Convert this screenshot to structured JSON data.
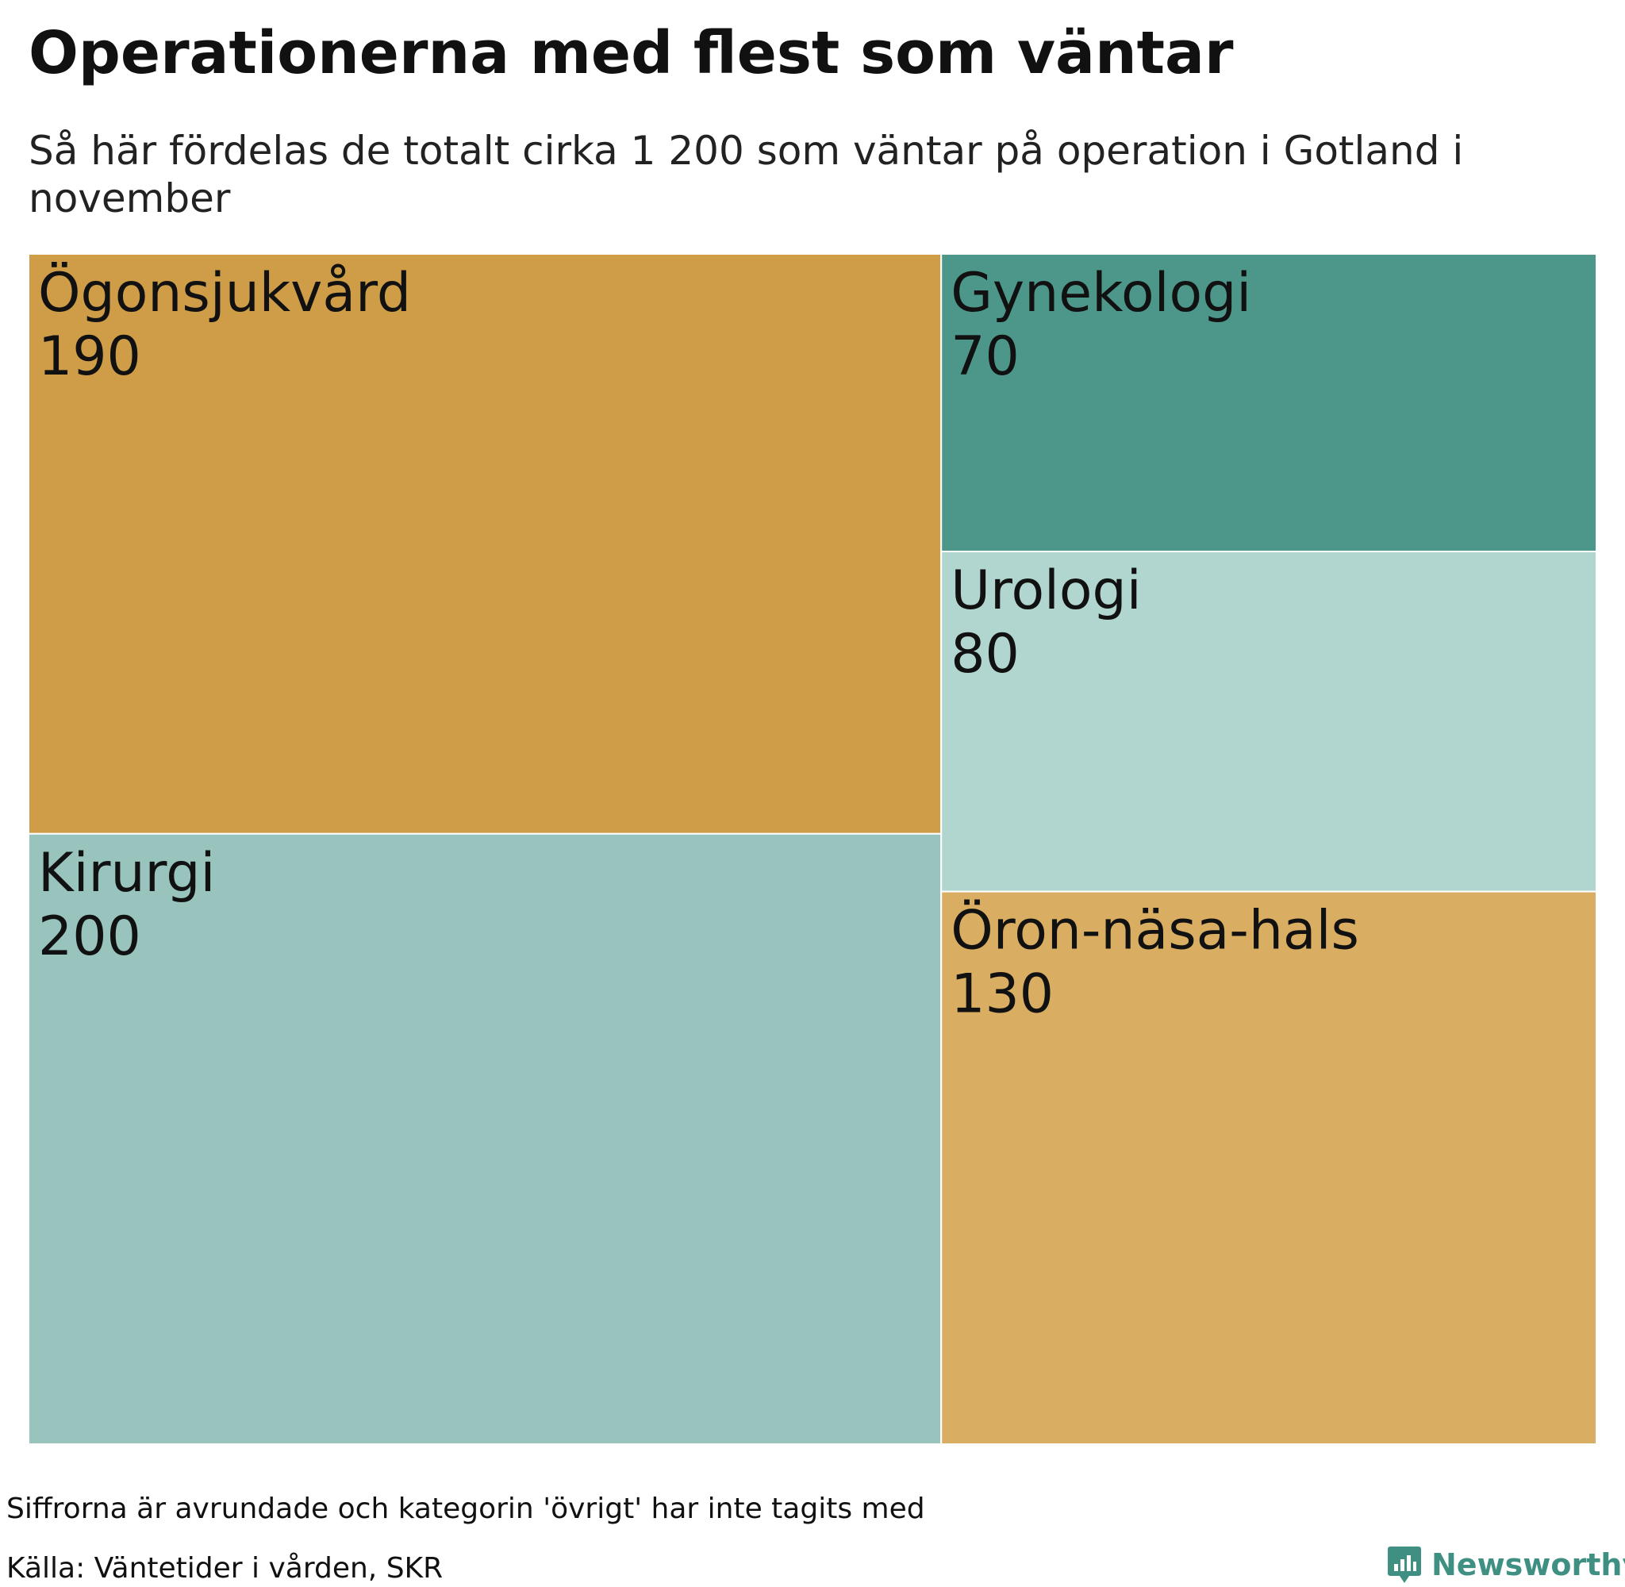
{
  "title": "Operationerna med flest som väntar",
  "subtitle": "Så här fördelas de totalt cirka 1 200 som väntar på operation i Gotland i november",
  "footer": {
    "note": "Siffrorna är avrundade och kategorin 'övrigt' har inte tagits med",
    "source": "Källa: Väntetider i vården, SKR",
    "brand": "Newsworthy",
    "brand_icon": "bar-chart-speech-bubble-icon",
    "brand_color": "#3f8f82"
  },
  "chart_data": {
    "type": "treemap",
    "title": "Operationerna med flest som väntar",
    "subtitle": "Så här fördelas de totalt cirka 1 200 som väntar på operation i Gotland i november",
    "categories": [
      "Kirurgi",
      "Ögonsjukvård",
      "Öron-näsa-hals",
      "Urologi",
      "Gynekologi"
    ],
    "values": [
      200,
      190,
      130,
      80,
      70
    ],
    "labels": [
      "200",
      "190",
      "130",
      "80",
      "70"
    ],
    "colors": [
      "#98c4bd",
      "#cf9d47",
      "#d9ae62",
      "#b1d6cf",
      "#4d968a"
    ]
  }
}
